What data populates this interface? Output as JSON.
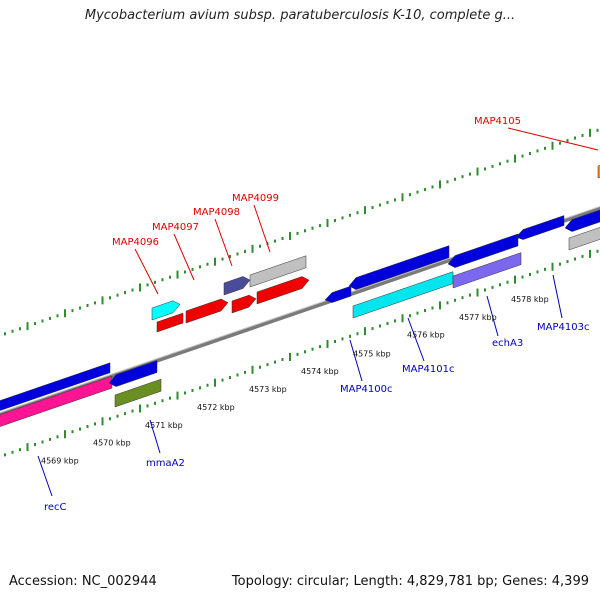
{
  "title": "Mycobacterium avium subsp. paratuberculosis K-10, complete g...",
  "accession": "Accession: NC_002944",
  "summary": "Topology: circular; Length: 4,829,781 bp; Genes: 4,399",
  "colors": {
    "backbone": "#808080",
    "tick": "#2e8b2e",
    "forward_label": "#dd0000",
    "reverse_label": "#0000bb"
  },
  "scale_labels": [
    "4569 kbp",
    "4570 kbp",
    "4571 kbp",
    "4572 kbp",
    "4573 kbp",
    "4574 kbp",
    "4575 kbp",
    "4576 kbp",
    "4577 kbp",
    "4578 kbp"
  ],
  "gene_labels": [
    "recC",
    "mmaA2",
    "MAP4100c",
    "MAP4101c",
    "echA3",
    "MAP4103c",
    "MAP4096",
    "MAP4097",
    "MAP4098",
    "MAP4099",
    "MAP4105"
  ],
  "features": [
    {
      "name": "recC",
      "color": "#ff1493",
      "strand": "reverse"
    },
    {
      "name": "mmaA2",
      "color": "#6b8e23",
      "strand": "reverse"
    },
    {
      "name": "MAP4100c",
      "color": "#0000dd",
      "strand": "reverse"
    },
    {
      "name": "MAP4101c",
      "color": "#00e5ee",
      "strand": "reverse"
    },
    {
      "name": "echA3",
      "color": "#7b68ee",
      "strand": "reverse"
    },
    {
      "name": "MAP4103c",
      "color": "#0000dd",
      "strand": "reverse"
    },
    {
      "name": "MAP4096",
      "color": "#00ffff",
      "strand": "forward"
    },
    {
      "name": "MAP4097",
      "color": "#ee0000",
      "strand": "forward"
    },
    {
      "name": "MAP4098",
      "color": "#ee0000",
      "strand": "forward"
    },
    {
      "name": "MAP4099",
      "color": "#4b4b9b",
      "strand": "forward"
    },
    {
      "name": "MAP4105",
      "color": "#ff8c00",
      "strand": "forward"
    }
  ]
}
